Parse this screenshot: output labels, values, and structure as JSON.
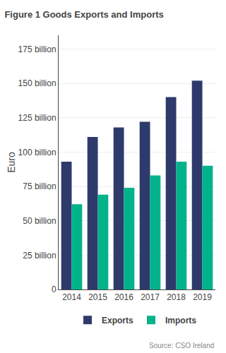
{
  "chart_data": {
    "type": "bar",
    "title": "Figure 1 Goods Exports and Imports",
    "categories": [
      "2014",
      "2015",
      "2016",
      "2017",
      "2018",
      "2019"
    ],
    "series": [
      {
        "name": "Exports",
        "color": "#2d3a6b",
        "values": [
          93,
          111,
          118,
          122,
          140,
          152
        ]
      },
      {
        "name": "Imports",
        "color": "#00b38a",
        "values": [
          62,
          69,
          74,
          83,
          93,
          90
        ]
      }
    ],
    "ylabel": "Euro",
    "ylim": [
      0,
      185
    ],
    "yticks": [
      0,
      {
        "value": 25,
        "label": "25 billion"
      },
      {
        "value": 50,
        "label": "50 billion"
      },
      {
        "value": 75,
        "label": "75 billion"
      },
      {
        "value": 100,
        "label": "100 billion"
      },
      {
        "value": 125,
        "label": "125 billion"
      },
      {
        "value": 150,
        "label": "150 billion"
      },
      {
        "value": 175,
        "label": "175 billion"
      }
    ],
    "grid": true,
    "legend": "bottom",
    "annotations": [
      "Source: CSO Ireland"
    ]
  }
}
